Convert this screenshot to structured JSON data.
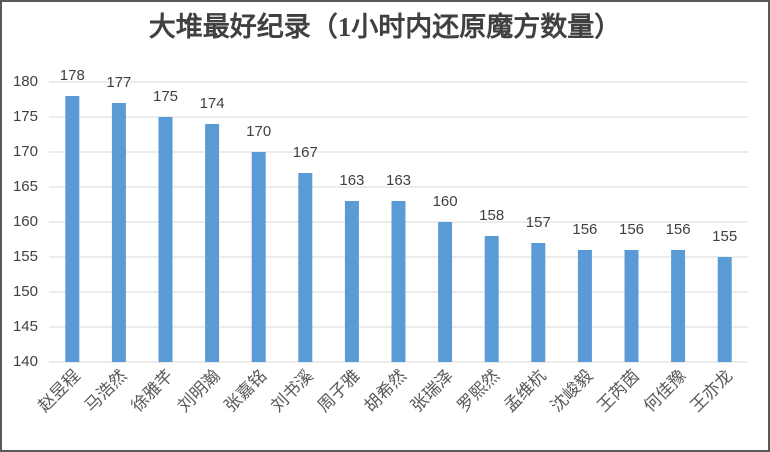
{
  "chart_data": {
    "type": "bar",
    "title": "大堆最好纪录（1小时内还原魔方数量）",
    "categories": [
      "赵昱程",
      "马浩然",
      "徐雅芊",
      "刘明瀚",
      "张嘉铭",
      "刘书溪",
      "周子雅",
      "胡希然",
      "张瑞泽",
      "罗熙然",
      "孟维杭",
      "沈峻毅",
      "王芮茵",
      "何佳豫",
      "王亦龙"
    ],
    "values": [
      178,
      177,
      175,
      174,
      170,
      167,
      163,
      163,
      160,
      158,
      157,
      156,
      156,
      156,
      155
    ],
    "color": "#5b9bd5",
    "ylim": [
      140,
      180
    ],
    "yticks": [
      140,
      145,
      150,
      155,
      160,
      165,
      170,
      175,
      180
    ],
    "grid": true
  }
}
